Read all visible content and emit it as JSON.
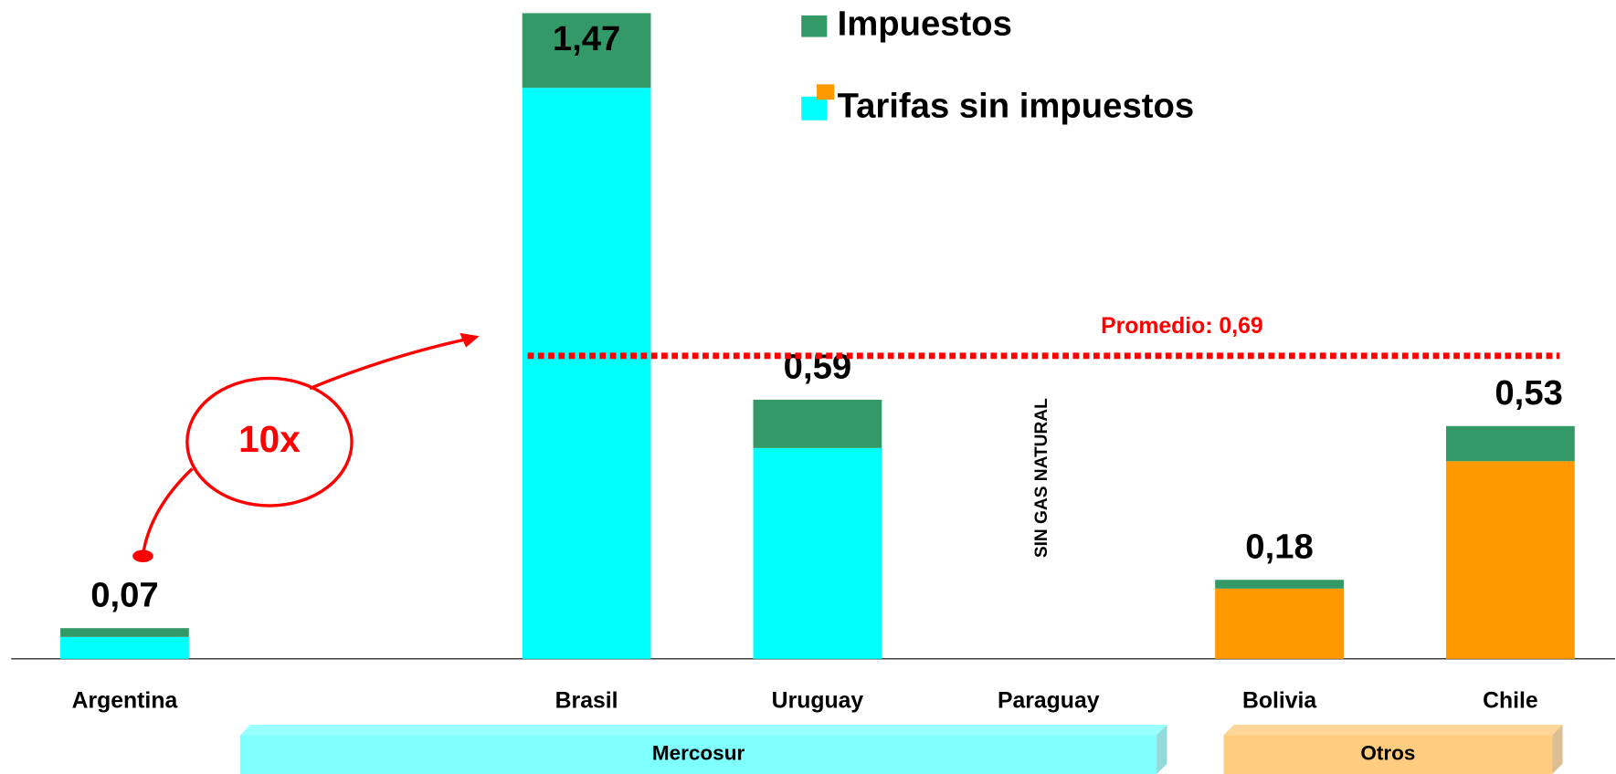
{
  "chart_data": {
    "type": "stacked_bar",
    "categories": [
      "Argentina",
      null,
      "Brasil",
      "Uruguay",
      "Paraguay",
      "Bolivia",
      "Chile"
    ],
    "series": [
      {
        "name": "Tarifas sin impuestos",
        "color": "#00ffff",
        "colors": [
          "#00ffff",
          null,
          "#00ffff",
          "#00ffff",
          null,
          "#ff9900",
          "#ff9900"
        ],
        "values": [
          0.05,
          null,
          1.3,
          0.48,
          null,
          0.16,
          0.45
        ]
      },
      {
        "name": "Impuestos",
        "color": "#339966",
        "values": [
          0.02,
          null,
          0.17,
          0.11,
          null,
          0.02,
          0.08
        ]
      }
    ],
    "totals": [
      0.07,
      null,
      1.47,
      0.59,
      null,
      0.18,
      0.53
    ],
    "total_labels": [
      "0,07",
      null,
      "1,47",
      "0,59",
      null,
      "0,18",
      "0,53"
    ],
    "ylim": [
      0,
      1.5
    ],
    "average": {
      "value": 0.69,
      "label": "Promedio: 0,69",
      "color": "#ff0000"
    },
    "annotations": [
      {
        "text": "SIN GAS NATURAL",
        "category": "Paraguay"
      },
      {
        "text": "10x",
        "color": "#ff0000"
      }
    ],
    "groups": [
      {
        "name": "Mercosur",
        "start": 1,
        "end": 4,
        "color": "#80ffff"
      },
      {
        "name": "Otros",
        "start": 5,
        "end": 6,
        "color": "#ffcc80"
      }
    ],
    "legend_position": "top"
  }
}
